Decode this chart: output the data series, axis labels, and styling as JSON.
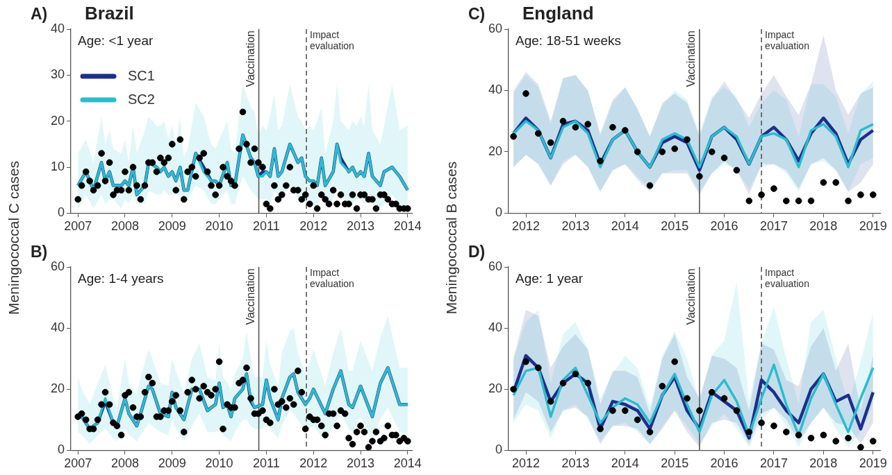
{
  "chart_data": [
    {
      "type": "line",
      "title": "A)",
      "subtitle": "Brazil",
      "ylabel": "Meningococcal C cases",
      "annotations": [
        "Age: <1 year"
      ],
      "legend": "top left",
      "xlim": [
        2006.85,
        2014.1
      ],
      "xticks": [
        2007,
        2008,
        2009,
        2010,
        2011,
        2012,
        2013,
        2014
      ],
      "ylim": [
        0,
        40
      ],
      "yticks": [
        0,
        10,
        20,
        30,
        40
      ],
      "ref_lines": [
        {
          "axis": "x",
          "value": 2010.84,
          "label": "Vaccination",
          "color": "#555555",
          "line_style": "solid"
        },
        {
          "axis": "x",
          "value": 2011.85,
          "label": "Impact evaluation",
          "color": "#555555",
          "line_style": "dashed"
        }
      ],
      "series": [
        {
          "name": "SC1",
          "type": "line",
          "color": "#1c2f8c",
          "x": [
            2007,
            2007.17,
            2007.33,
            2007.5,
            2007.58,
            2007.67,
            2007.75,
            2007.92,
            2008,
            2008.08,
            2008.17,
            2008.25,
            2008.42,
            2008.5,
            2008.67,
            2008.75,
            2008.83,
            2008.92,
            2009,
            2009.08,
            2009.17,
            2009.25,
            2009.33,
            2009.5,
            2009.67,
            2009.83,
            2009.92,
            2010,
            2010.17,
            2010.25,
            2010.33,
            2010.5,
            2010.67,
            2010.75,
            2010.83,
            2010.92,
            2011,
            2011.08,
            2011.17,
            2011.25,
            2011.33,
            2011.5,
            2011.67,
            2011.75,
            2011.83,
            2011.92,
            2012,
            2012.08,
            2012.17,
            2012.25,
            2012.42,
            2012.5,
            2012.58,
            2012.75,
            2012.83,
            2012.92,
            2013,
            2013.08,
            2013.17,
            2013.25,
            2013.42,
            2013.5,
            2013.67,
            2013.83,
            2014
          ],
          "values": [
            6,
            9,
            5,
            11,
            7,
            9,
            6,
            6,
            7,
            6,
            10,
            4,
            6,
            11,
            10,
            9,
            10,
            8,
            9,
            7,
            10,
            5,
            5,
            13,
            10,
            7,
            7,
            6,
            11,
            6,
            6,
            17,
            12,
            11,
            8,
            9,
            9,
            8,
            14,
            8,
            9,
            15,
            11,
            12,
            8,
            7,
            7,
            6,
            12,
            6,
            9,
            15,
            12,
            9,
            10,
            8,
            9,
            8,
            13,
            8,
            6,
            9,
            10,
            8,
            5
          ]
        },
        {
          "name": "SC2",
          "type": "line",
          "color": "#2bbccf",
          "x": [
            2007,
            2007.17,
            2007.33,
            2007.5,
            2007.58,
            2007.67,
            2007.75,
            2007.92,
            2008,
            2008.08,
            2008.17,
            2008.25,
            2008.42,
            2008.5,
            2008.67,
            2008.75,
            2008.83,
            2008.92,
            2009,
            2009.08,
            2009.17,
            2009.25,
            2009.33,
            2009.5,
            2009.67,
            2009.83,
            2009.92,
            2010,
            2010.17,
            2010.25,
            2010.33,
            2010.5,
            2010.67,
            2010.75,
            2010.83,
            2010.92,
            2011,
            2011.08,
            2011.17,
            2011.25,
            2011.33,
            2011.5,
            2011.67,
            2011.75,
            2011.83,
            2011.92,
            2012,
            2012.08,
            2012.17,
            2012.25,
            2012.42,
            2012.5,
            2012.58,
            2012.75,
            2012.83,
            2012.92,
            2013,
            2013.08,
            2013.17,
            2013.25,
            2013.42,
            2013.5,
            2013.67,
            2013.83,
            2014
          ],
          "values": [
            6,
            9,
            5,
            11,
            7,
            9,
            6,
            6,
            7,
            6,
            10,
            4,
            6,
            11,
            10,
            9,
            10,
            8,
            9,
            7,
            10,
            5,
            5,
            13,
            9,
            7,
            7,
            6,
            11,
            6,
            6,
            17,
            12,
            11,
            8,
            8,
            9,
            8,
            14,
            8,
            9,
            15,
            11,
            12,
            8,
            7,
            7,
            6,
            12,
            6,
            9,
            15,
            11,
            9,
            10,
            8,
            9,
            8,
            13,
            8,
            6,
            9,
            10,
            8,
            5
          ],
          "upper": [
            13,
            16,
            11,
            21,
            15,
            18,
            14,
            13,
            16,
            11,
            19,
            13,
            18,
            21,
            19,
            19,
            20,
            16,
            19,
            15,
            21,
            12,
            14,
            24,
            21,
            15,
            14,
            16,
            20,
            14,
            13,
            28,
            23,
            22,
            17,
            19,
            18,
            21,
            26,
            18,
            19,
            28,
            21,
            20,
            18,
            19,
            18,
            20,
            23,
            13,
            20,
            28,
            20,
            18,
            20,
            19,
            21,
            19,
            28,
            18,
            15,
            19,
            28,
            18,
            19
          ],
          "lower": [
            1,
            4,
            1,
            4,
            2,
            3,
            3,
            1,
            3,
            2,
            4,
            2,
            2,
            5,
            4,
            4,
            5,
            4,
            4,
            4,
            4,
            2,
            3,
            6,
            5,
            2,
            2,
            3,
            5,
            2,
            2,
            8,
            5,
            4,
            3,
            3,
            3,
            2,
            5,
            4,
            3,
            6,
            3,
            3,
            2,
            3,
            2,
            1,
            4,
            1,
            3,
            6,
            4,
            2,
            2,
            3,
            3,
            2,
            5,
            2,
            1,
            2,
            4,
            2,
            1
          ]
        },
        {
          "type": "scatter",
          "color": "#000000",
          "marker": "circle",
          "x": [
            2007,
            2007.08,
            2007.17,
            2007.25,
            2007.33,
            2007.42,
            2007.5,
            2007.58,
            2007.67,
            2007.75,
            2007.83,
            2007.92,
            2008,
            2008.08,
            2008.17,
            2008.25,
            2008.33,
            2008.42,
            2008.5,
            2008.58,
            2008.67,
            2008.75,
            2008.83,
            2008.92,
            2009,
            2009.08,
            2009.17,
            2009.25,
            2009.33,
            2009.42,
            2009.5,
            2009.58,
            2009.67,
            2009.75,
            2009.83,
            2009.92,
            2010,
            2010.08,
            2010.17,
            2010.25,
            2010.33,
            2010.42,
            2010.5,
            2010.58,
            2010.67,
            2010.75,
            2010.83,
            2010.92,
            2011,
            2011.08,
            2011.17,
            2011.25,
            2011.33,
            2011.42,
            2011.5,
            2011.58,
            2011.67,
            2011.75,
            2011.83,
            2011.92,
            2012,
            2012.08,
            2012.17,
            2012.25,
            2012.33,
            2012.42,
            2012.5,
            2012.58,
            2012.67,
            2012.75,
            2012.83,
            2012.92,
            2013,
            2013.08,
            2013.17,
            2013.25,
            2013.33,
            2013.42,
            2013.5,
            2013.58,
            2013.67,
            2013.75,
            2013.83,
            2013.92,
            2014
          ],
          "values": [
            3,
            6,
            9,
            7,
            5,
            6,
            13,
            7,
            11,
            4,
            5,
            5,
            9,
            5,
            10,
            6,
            3,
            6,
            11,
            11,
            9,
            12,
            11,
            12,
            15,
            5,
            16,
            3,
            9,
            10,
            8,
            12,
            13,
            9,
            6,
            4,
            6,
            10,
            8,
            7,
            6,
            14,
            22,
            15,
            11,
            14,
            11,
            10,
            2,
            1,
            6,
            3,
            4,
            6,
            10,
            5,
            5,
            3,
            4,
            2,
            6,
            1,
            4,
            3,
            2,
            5,
            2,
            4,
            2,
            2,
            4,
            1,
            4,
            4,
            3,
            3,
            1,
            4,
            4,
            3,
            2,
            2,
            1,
            1,
            1
          ]
        }
      ]
    },
    {
      "type": "line",
      "title": "B)",
      "annotations": [
        "Age: 1-4 years"
      ],
      "xlim": [
        2006.85,
        2014.1
      ],
      "xticks": [
        2007,
        2008,
        2009,
        2010,
        2011,
        2012,
        2013,
        2014
      ],
      "ylim": [
        0,
        60
      ],
      "yticks": [
        0,
        20,
        40,
        60
      ],
      "ref_lines": [
        {
          "axis": "x",
          "value": 2010.84,
          "label": "Vaccination",
          "color": "#555555",
          "line_style": "solid"
        },
        {
          "axis": "x",
          "value": 2011.85,
          "label": "Impact evaluation",
          "color": "#555555",
          "line_style": "dashed"
        }
      ],
      "series": [
        {
          "type": "line",
          "color": "#1c2f8c",
          "x": [
            2007,
            2007.08,
            2007.25,
            2007.42,
            2007.58,
            2007.75,
            2007.83,
            2008,
            2008.08,
            2008.25,
            2008.33,
            2008.5,
            2008.58,
            2008.75,
            2008.92,
            2009,
            2009.08,
            2009.25,
            2009.42,
            2009.58,
            2009.75,
            2009.92,
            2010,
            2010.08,
            2010.17,
            2010.25,
            2010.33,
            2010.5,
            2010.58,
            2010.67,
            2010.75,
            2010.92,
            2011,
            2011.08,
            2011.25,
            2011.33,
            2011.5,
            2011.58,
            2011.67,
            2011.83,
            2011.92,
            2012,
            2012.25,
            2012.42,
            2012.58,
            2012.75,
            2012.83,
            2013,
            2013.25,
            2013.42,
            2013.58,
            2013.83,
            2014
          ],
          "values": [
            12,
            11,
            7,
            9,
            16,
            9,
            8,
            17,
            12,
            8,
            12,
            21,
            20,
            12,
            11,
            19,
            14,
            10,
            20,
            20,
            13,
            15,
            22,
            14,
            15,
            11,
            17,
            20,
            25,
            16,
            14,
            15,
            23,
            17,
            10,
            17,
            24,
            25,
            19,
            15,
            17,
            20,
            12,
            20,
            26,
            15,
            14,
            21,
            11,
            22,
            27,
            15,
            15
          ]
        },
        {
          "type": "line",
          "color": "#2bbccf",
          "x": [
            2007,
            2007.08,
            2007.25,
            2007.42,
            2007.58,
            2007.75,
            2007.83,
            2008,
            2008.08,
            2008.25,
            2008.33,
            2008.5,
            2008.58,
            2008.75,
            2008.92,
            2009,
            2009.08,
            2009.25,
            2009.42,
            2009.58,
            2009.75,
            2009.92,
            2010,
            2010.08,
            2010.17,
            2010.25,
            2010.33,
            2010.5,
            2010.58,
            2010.67,
            2010.75,
            2010.92,
            2011,
            2011.08,
            2011.25,
            2011.33,
            2011.5,
            2011.58,
            2011.67,
            2011.83,
            2011.92,
            2012,
            2012.25,
            2012.42,
            2012.58,
            2012.75,
            2012.83,
            2013,
            2013.25,
            2013.42,
            2013.58,
            2013.83,
            2014
          ],
          "values": [
            12,
            11,
            7,
            9,
            17,
            9,
            8,
            17,
            12,
            8,
            12,
            21,
            20,
            12,
            11,
            19,
            14,
            10,
            20,
            20,
            13,
            15,
            22,
            14,
            15,
            11,
            17,
            20,
            25,
            17,
            14,
            15,
            23,
            17,
            10,
            17,
            24,
            25,
            19,
            15,
            17,
            20,
            12,
            20,
            26,
            15,
            14,
            21,
            11,
            22,
            27,
            15,
            15
          ],
          "upper": [
            24,
            20,
            15,
            22,
            28,
            17,
            14,
            30,
            22,
            18,
            24,
            33,
            30,
            22,
            21,
            30,
            26,
            19,
            30,
            35,
            24,
            23,
            35,
            24,
            22,
            20,
            25,
            30,
            39,
            30,
            24,
            24,
            36,
            28,
            21,
            32,
            39,
            40,
            32,
            25,
            29,
            33,
            21,
            32,
            40,
            26,
            26,
            36,
            26,
            37,
            44,
            27,
            27
          ],
          "lower": [
            6,
            5,
            2,
            5,
            7,
            4,
            3,
            7,
            5,
            3,
            5,
            9,
            8,
            6,
            5,
            10,
            7,
            3,
            8,
            12,
            6,
            6,
            7,
            5,
            4,
            3,
            6,
            10,
            10,
            8,
            7,
            7,
            9,
            7,
            4,
            8,
            13,
            12,
            10,
            6,
            7,
            8,
            3,
            8,
            12,
            7,
            6,
            11,
            4,
            10,
            14,
            6,
            5
          ]
        },
        {
          "type": "scatter",
          "color": "#000000",
          "marker": "circle",
          "x": [
            2007,
            2007.08,
            2007.17,
            2007.25,
            2007.33,
            2007.42,
            2007.5,
            2007.58,
            2007.67,
            2007.75,
            2007.83,
            2007.92,
            2008,
            2008.08,
            2008.17,
            2008.25,
            2008.33,
            2008.42,
            2008.5,
            2008.58,
            2008.67,
            2008.75,
            2008.83,
            2008.92,
            2009,
            2009.08,
            2009.17,
            2009.25,
            2009.33,
            2009.42,
            2009.5,
            2009.58,
            2009.67,
            2009.75,
            2009.83,
            2009.92,
            2010,
            2010.08,
            2010.17,
            2010.25,
            2010.33,
            2010.42,
            2010.5,
            2010.58,
            2010.67,
            2010.75,
            2010.83,
            2010.92,
            2011,
            2011.08,
            2011.17,
            2011.25,
            2011.33,
            2011.42,
            2011.5,
            2011.58,
            2011.67,
            2011.75,
            2011.83,
            2011.92,
            2012,
            2012.08,
            2012.17,
            2012.25,
            2012.33,
            2012.42,
            2012.5,
            2012.58,
            2012.67,
            2012.75,
            2012.83,
            2012.92,
            2013,
            2013.08,
            2013.17,
            2013.25,
            2013.33,
            2013.42,
            2013.5,
            2013.58,
            2013.67,
            2013.75,
            2013.83,
            2013.92,
            2014
          ],
          "values": [
            11,
            12,
            10,
            7,
            7,
            10,
            15,
            19,
            15,
            9,
            8,
            5,
            18,
            19,
            14,
            11,
            11,
            19,
            24,
            22,
            11,
            11,
            13,
            13,
            16,
            18,
            13,
            6,
            19,
            23,
            20,
            17,
            21,
            19,
            18,
            20,
            29,
            7,
            15,
            14,
            14,
            22,
            23,
            27,
            17,
            12,
            12,
            13,
            10,
            9,
            20,
            15,
            16,
            14,
            17,
            15,
            26,
            19,
            7,
            11,
            10,
            10,
            8,
            5,
            12,
            12,
            8,
            13,
            12,
            4,
            2,
            6,
            8,
            6,
            1,
            3,
            6,
            3,
            4,
            8,
            5,
            5,
            3,
            4,
            3
          ]
        }
      ]
    },
    {
      "type": "line",
      "title": "C)",
      "subtitle": "England",
      "ylabel": "Meningococcal B cases",
      "annotations": [
        "Age: 18-51 weeks"
      ],
      "x": [
        2011.75,
        2012,
        2012.25,
        2012.5,
        2012.75,
        2013,
        2013.25,
        2013.5,
        2013.75,
        2014,
        2014.25,
        2014.5,
        2014.75,
        2015,
        2015.25,
        2015.5,
        2015.75,
        2016,
        2016.25,
        2016.5,
        2016.75,
        2017,
        2017.25,
        2017.5,
        2017.75,
        2018,
        2018.25,
        2018.5,
        2018.75,
        2019
      ],
      "xlim": [
        2011.65,
        2019.15
      ],
      "xticks": [
        2012,
        2013,
        2014,
        2015,
        2016,
        2017,
        2018,
        2019
      ],
      "ylim": [
        0,
        60
      ],
      "yticks": [
        0,
        20,
        40,
        60
      ],
      "ref_lines": [
        {
          "axis": "x",
          "value": 2015.5,
          "label": "Vaccination",
          "color": "#555555",
          "line_style": "solid"
        },
        {
          "axis": "x",
          "value": 2016.75,
          "label": "Impact evaluation",
          "color": "#555555",
          "line_style": "dashed"
        }
      ],
      "series": [
        {
          "type": "line",
          "color": "#1c2f8c",
          "values": [
            26,
            31,
            27,
            18,
            29,
            30,
            27,
            16,
            24,
            27,
            20,
            15,
            23,
            25,
            23,
            14,
            25,
            28,
            24,
            16,
            25,
            28,
            24,
            17,
            26,
            31,
            26,
            16,
            24,
            27
          ],
          "upper": [
            40,
            46,
            42,
            30,
            44,
            45,
            40,
            26,
            37,
            41,
            34,
            25,
            36,
            39,
            36,
            25,
            37,
            43,
            37,
            31,
            39,
            45,
            38,
            32,
            42,
            58,
            40,
            32,
            39,
            41
          ],
          "lower": [
            15,
            19,
            16,
            9,
            16,
            19,
            15,
            7,
            14,
            16,
            11,
            7,
            13,
            13,
            13,
            6,
            13,
            17,
            14,
            6,
            16,
            16,
            14,
            8,
            16,
            18,
            14,
            7,
            10,
            16
          ]
        },
        {
          "type": "line",
          "color": "#2bbccf",
          "values": [
            26,
            30,
            27,
            18,
            28,
            30,
            26,
            15,
            24,
            27,
            20,
            15,
            24,
            26,
            24,
            15,
            25,
            28,
            25,
            16,
            25,
            26,
            24,
            15,
            27,
            29,
            25,
            15,
            27,
            29
          ],
          "upper": [
            39,
            45,
            41,
            29,
            44,
            45,
            40,
            25,
            36,
            41,
            34,
            25,
            35,
            40,
            37,
            26,
            38,
            41,
            38,
            28,
            36,
            40,
            37,
            25,
            42,
            42,
            38,
            26,
            39,
            43
          ],
          "lower": [
            15,
            19,
            16,
            9,
            17,
            19,
            15,
            7,
            14,
            16,
            12,
            8,
            13,
            14,
            14,
            7,
            13,
            16,
            14,
            8,
            15,
            16,
            13,
            7,
            16,
            17,
            14,
            7,
            16,
            18
          ]
        },
        {
          "type": "scatter",
          "color": "#000000",
          "marker": "circle",
          "values": [
            25,
            39,
            26,
            23,
            30,
            28,
            29,
            17,
            28,
            27,
            20,
            9,
            20,
            21,
            24,
            12,
            20,
            18,
            14,
            4,
            6,
            8,
            4,
            4,
            4,
            10,
            10,
            4,
            6,
            6
          ]
        }
      ]
    },
    {
      "type": "line",
      "title": "D)",
      "annotations": [
        "Age: 1 year"
      ],
      "x": [
        2011.75,
        2012,
        2012.25,
        2012.5,
        2012.75,
        2013,
        2013.25,
        2013.5,
        2013.75,
        2014,
        2014.25,
        2014.5,
        2014.75,
        2015,
        2015.25,
        2015.5,
        2015.75,
        2016,
        2016.25,
        2016.5,
        2016.75,
        2017,
        2017.25,
        2017.5,
        2017.75,
        2018,
        2018.25,
        2018.5,
        2018.75,
        2019
      ],
      "xlim": [
        2011.65,
        2019.15
      ],
      "xticks": [
        2012,
        2013,
        2014,
        2015,
        2016,
        2017,
        2018,
        2019
      ],
      "ylim": [
        0,
        60
      ],
      "yticks": [
        0,
        20,
        40,
        60
      ],
      "ref_lines": [
        {
          "axis": "x",
          "value": 2015.5,
          "label": "Vaccination",
          "color": "#555555",
          "line_style": "solid"
        },
        {
          "axis": "x",
          "value": 2016.75,
          "label": "Impact evaluation",
          "color": "#555555",
          "line_style": "dashed"
        }
      ],
      "series": [
        {
          "type": "line",
          "color": "#1c2f8c",
          "values": [
            19,
            31,
            27,
            16,
            22,
            25,
            22,
            7,
            16,
            15,
            13,
            7,
            18,
            24,
            13,
            7,
            19,
            16,
            13,
            4,
            23,
            19,
            13,
            9,
            20,
            25,
            16,
            18,
            7,
            19
          ],
          "upper": [
            30,
            46,
            44,
            27,
            34,
            38,
            33,
            15,
            26,
            26,
            24,
            12,
            30,
            38,
            24,
            17,
            31,
            30,
            27,
            13,
            35,
            33,
            23,
            21,
            34,
            40,
            26,
            35,
            13,
            31
          ],
          "lower": [
            10,
            19,
            16,
            6,
            13,
            14,
            11,
            2,
            8,
            8,
            7,
            2,
            7,
            13,
            6,
            1,
            9,
            10,
            9,
            2,
            12,
            14,
            10,
            3,
            9,
            14,
            9,
            8,
            2,
            9
          ]
        },
        {
          "type": "line",
          "color": "#2bbccf",
          "values": [
            18,
            26,
            27,
            11,
            23,
            27,
            18,
            9,
            14,
            17,
            15,
            9,
            18,
            25,
            15,
            6,
            18,
            23,
            16,
            5,
            17,
            28,
            15,
            5,
            17,
            25,
            15,
            6,
            17,
            27
          ],
          "upper": [
            30,
            42,
            46,
            22,
            38,
            42,
            33,
            17,
            25,
            31,
            27,
            14,
            31,
            39,
            30,
            16,
            31,
            36,
            55,
            16,
            35,
            47,
            30,
            15,
            42,
            46,
            30,
            15,
            29,
            45
          ],
          "lower": [
            9,
            15,
            13,
            4,
            13,
            15,
            10,
            3,
            8,
            9,
            6,
            2,
            8,
            13,
            8,
            2,
            8,
            12,
            7,
            1,
            10,
            14,
            8,
            1,
            9,
            14,
            7,
            1,
            6,
            15
          ]
        },
        {
          "type": "scatter",
          "color": "#000000",
          "marker": "circle",
          "values": [
            20,
            29,
            27,
            16,
            22,
            25,
            22,
            7,
            13,
            13,
            10,
            6,
            21,
            29,
            17,
            13,
            19,
            17,
            13,
            6,
            9,
            8,
            6,
            5,
            4,
            5,
            3,
            4,
            1,
            3
          ]
        }
      ]
    }
  ]
}
